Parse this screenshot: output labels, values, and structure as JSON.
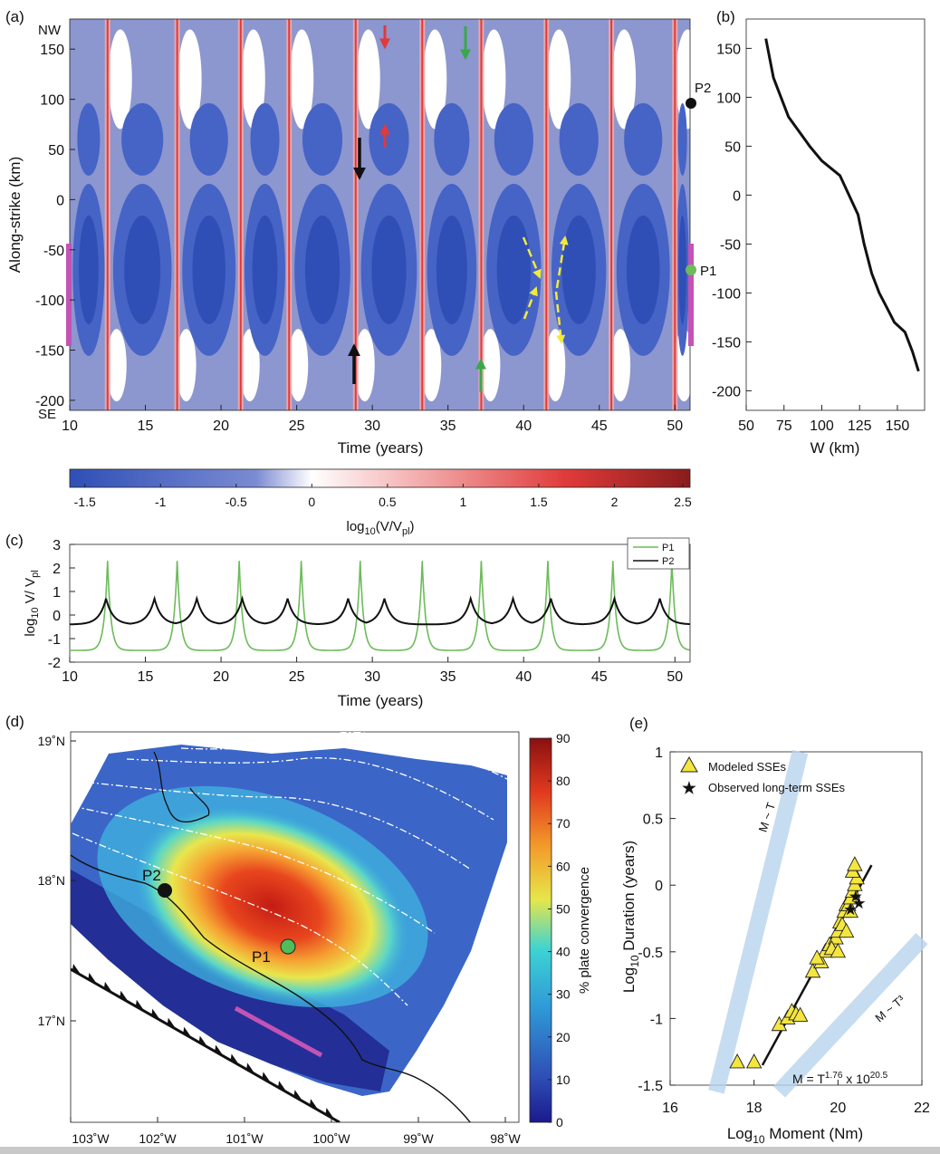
{
  "panel_labels": {
    "a": "(a)",
    "b": "(b)",
    "c": "(c)",
    "d": "(d)",
    "e": "(e)"
  },
  "colors": {
    "blue_dark": "#2f4fb6",
    "blue_mid": "#4663c6",
    "blue_light": "#8c96cf",
    "red": "#e03a3a",
    "pink": "#f3a8a8",
    "magenta": "#c353b5",
    "p1_green": "#6dbb5a",
    "arrow_yellow": "#f2ea3a",
    "arrow_green": "#3aa84a",
    "band_blue": "#b8d4ee",
    "triangle_yellow": "#f4e640",
    "star_red": "#e84a3a"
  },
  "chart_data": [
    {
      "id": "a",
      "type": "heatmap",
      "title": "",
      "xlabel": "Time (years)",
      "ylabel": "Along-strike (km)",
      "xlim": [
        10,
        51
      ],
      "ylim": [
        -210,
        180
      ],
      "xticks": [
        "10",
        "15",
        "20",
        "25",
        "30",
        "35",
        "40",
        "45",
        "50"
      ],
      "yticks": [
        "150",
        "100",
        "50",
        "0",
        "-50",
        "-100",
        "-150",
        "-200"
      ],
      "corner_labels": {
        "top": "NW",
        "bottom": "SE"
      },
      "event_times": [
        12.5,
        17.1,
        21.3,
        24.5,
        28.9,
        33.3,
        37.2,
        41.5,
        45.8,
        50.0
      ],
      "points": [
        {
          "label": "P1",
          "y": -78
        },
        {
          "label": "P2",
          "y": 100
        }
      ],
      "segment_km": [
        -50,
        -160
      ]
    },
    {
      "id": "b",
      "type": "line",
      "title": "",
      "xlabel": "W (km)",
      "ylabel": "",
      "xlim": [
        50,
        168
      ],
      "ylim": [
        -220,
        180
      ],
      "xticks": [
        "50",
        "75",
        "100",
        "125",
        "150"
      ],
      "yticks": [
        "150",
        "100",
        "50",
        "0",
        "-50",
        "-100",
        "-150",
        "-200"
      ],
      "series": [
        {
          "x": [
            63,
            68,
            78,
            92,
            100,
            112,
            118,
            124,
            128,
            133,
            138,
            143,
            148,
            155,
            160,
            164
          ],
          "y": [
            160,
            120,
            80,
            50,
            35,
            20,
            0,
            -20,
            -50,
            -80,
            -100,
            -115,
            -130,
            -140,
            -160,
            -180
          ]
        }
      ]
    },
    {
      "id": "colorbar_a",
      "type": "heatmap",
      "label": "log10(V/Vpl)",
      "range": [
        -1.6,
        2.5
      ],
      "ticks": [
        "-1.5",
        "-1",
        "-0.5",
        "0",
        "0.5",
        "1",
        "1.5",
        "2",
        "2.5"
      ]
    },
    {
      "id": "c",
      "type": "line",
      "title": "",
      "xlabel": "Time (years)",
      "ylabel": "log10 V/ Vpl",
      "xlim": [
        10,
        51
      ],
      "ylim": [
        -2,
        3
      ],
      "xticks": [
        "10",
        "15",
        "20",
        "25",
        "30",
        "35",
        "40",
        "45",
        "50"
      ],
      "yticks": [
        "3",
        "2",
        "1",
        "0",
        "-1",
        "-2"
      ],
      "series": [
        {
          "name": "P1",
          "peaks": [
            12.5,
            17.1,
            21.2,
            25.3,
            29.2,
            33.3,
            37.2,
            41.6,
            45.9,
            49.8
          ],
          "peak": 2.3,
          "base": -1.5
        },
        {
          "name": "P2",
          "peaks": [
            12.4,
            15.6,
            18.4,
            21.4,
            24.4,
            28.4,
            30.8,
            36.5,
            39.3,
            41.8,
            46.0,
            49.0
          ],
          "peak": 0.7,
          "base": -0.4
        }
      ]
    },
    {
      "id": "d",
      "type": "heatmap",
      "title": "",
      "colorbar_label": "% plate convergence",
      "colorbar_range": [
        0,
        90
      ],
      "colorbar_ticks": [
        "90",
        "80",
        "70",
        "60",
        "50",
        "40",
        "30",
        "20",
        "10",
        "0"
      ],
      "xticks": [
        "103˚W",
        "102˚W",
        "101˚W",
        "100˚W",
        "99˚W",
        "98˚W"
      ],
      "yticks": [
        "19˚N",
        "18˚N",
        "17˚N"
      ],
      "points": [
        {
          "label": "P2",
          "lon": -101.9,
          "lat": 17.95
        },
        {
          "label": "P1",
          "lon": -100.45,
          "lat": 17.55
        }
      ]
    },
    {
      "id": "e",
      "type": "scatter",
      "title": "",
      "xlabel": "Log10 Moment (Nm)",
      "ylabel": "Log10 Duration (years)",
      "xlim": [
        16,
        22
      ],
      "ylim": [
        -1.5,
        1
      ],
      "xticks": [
        "16",
        "18",
        "20",
        "22"
      ],
      "yticks": [
        "1",
        "0.5",
        "0",
        "-0.5",
        "-1",
        "-1.5"
      ],
      "legend": [
        "Modeled SSEs",
        "Observed long-term SSEs"
      ],
      "band_labels": [
        "M ~ T",
        "M ~ T³"
      ],
      "equation": "M = T1.76 x 1020.5",
      "fit": {
        "x": [
          18.2,
          20.8
        ],
        "y": [
          -1.35,
          0.15
        ]
      },
      "series": [
        {
          "name": "Modeled SSEs",
          "x": [
            17.6,
            18.0,
            18.6,
            18.8,
            18.9,
            19.0,
            19.1,
            19.4,
            19.6,
            19.7,
            19.8,
            19.9,
            19.95,
            20.0,
            20.05,
            20.1,
            20.15,
            20.2,
            20.25,
            20.3,
            20.35,
            20.4,
            20.45,
            19.85,
            20.0,
            20.2,
            20.3,
            20.35,
            20.4,
            19.5
          ],
          "y": [
            -1.33,
            -1.33,
            -1.05,
            -1.0,
            -0.95,
            -0.97,
            -0.98,
            -0.65,
            -0.58,
            -0.5,
            -0.45,
            -0.45,
            -0.4,
            -0.35,
            -0.28,
            -0.3,
            -0.2,
            -0.15,
            -0.15,
            -0.1,
            -0.05,
            0.0,
            0.05,
            -0.48,
            -0.5,
            -0.35,
            -0.2,
            0.1,
            0.15,
            -0.55
          ]
        },
        {
          "name": "Observed long-term SSEs",
          "x": [
            20.3,
            20.42,
            20.5
          ],
          "y": [
            -0.18,
            -0.08,
            -0.13
          ]
        }
      ]
    }
  ]
}
